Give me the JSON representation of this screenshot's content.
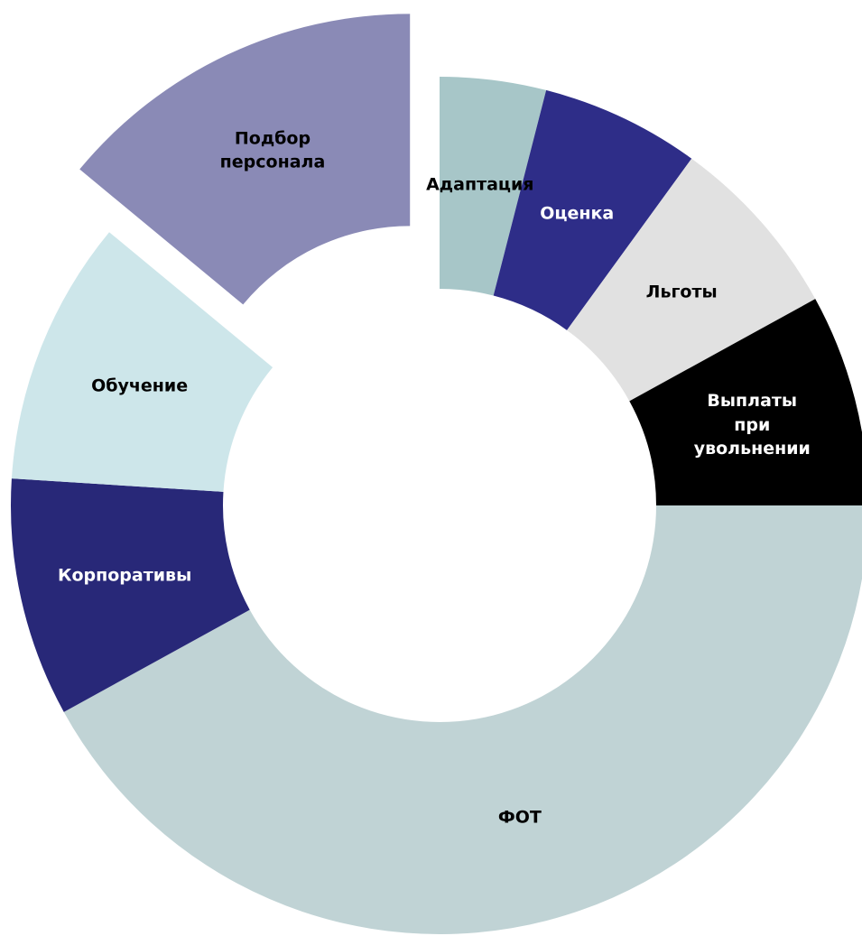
{
  "chart_data": {
    "type": "donut",
    "categories": [
      "Адаптация",
      "Оценка",
      "Льготы",
      "Выплаты при увольнении",
      "ФОТ",
      "Корпоративы",
      "Обучение",
      "Подбор персонала"
    ],
    "values": [
      4,
      6,
      7,
      8,
      42,
      9,
      10,
      14
    ],
    "colors": [
      "#a7c6c8",
      "#2e2d88",
      "#e1e1e1",
      "#000000",
      "#c0d3d5",
      "#282878",
      "#cde6ea",
      "#8a8ab6"
    ],
    "exploded": "Подбор персонала"
  }
}
